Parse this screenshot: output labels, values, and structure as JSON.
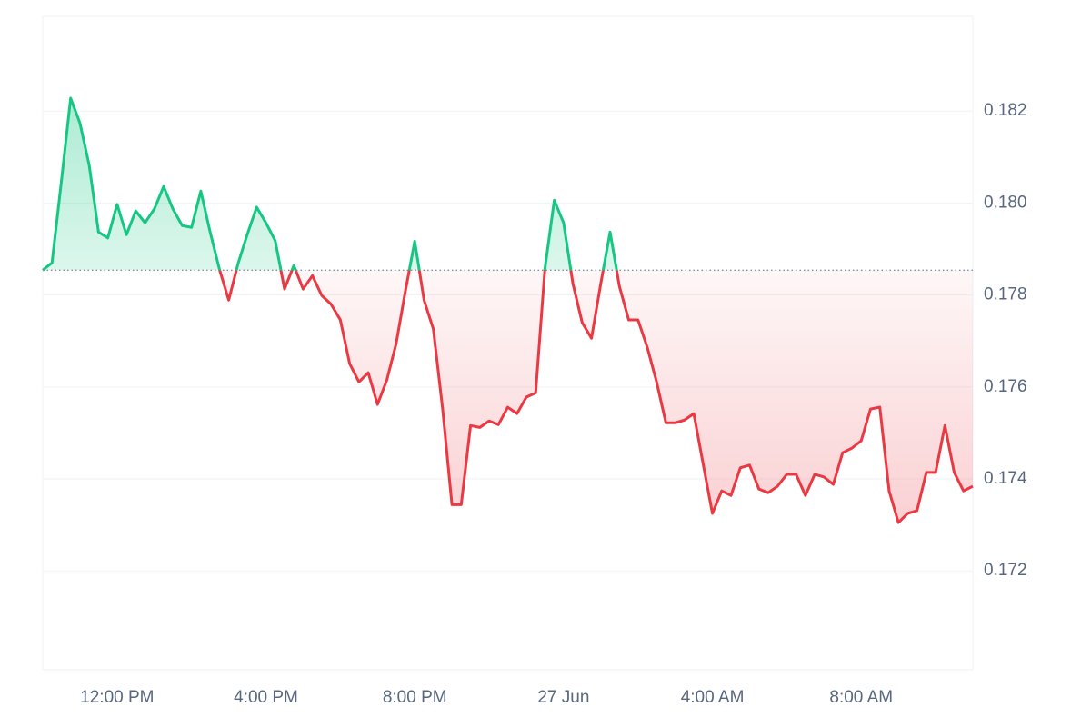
{
  "chart_data": {
    "type": "line",
    "x": [
      "26 Jun 10:00",
      "26 Jun 10:15",
      "26 Jun 10:30",
      "26 Jun 10:45",
      "26 Jun 11:00",
      "26 Jun 11:15",
      "26 Jun 11:30",
      "26 Jun 11:45",
      "26 Jun 12:00",
      "26 Jun 12:15",
      "26 Jun 12:30",
      "26 Jun 12:45",
      "26 Jun 13:00",
      "26 Jun 13:15",
      "26 Jun 13:30",
      "26 Jun 13:45",
      "26 Jun 14:00",
      "26 Jun 14:15",
      "26 Jun 14:30",
      "26 Jun 14:45",
      "26 Jun 15:00",
      "26 Jun 15:15",
      "26 Jun 15:30",
      "26 Jun 15:45",
      "26 Jun 16:00",
      "26 Jun 16:15",
      "26 Jun 16:30",
      "26 Jun 16:45",
      "26 Jun 17:00",
      "26 Jun 17:15",
      "26 Jun 17:30",
      "26 Jun 17:45",
      "26 Jun 18:00",
      "26 Jun 18:15",
      "26 Jun 18:30",
      "26 Jun 18:45",
      "26 Jun 19:00",
      "26 Jun 19:15",
      "26 Jun 19:30",
      "26 Jun 19:45",
      "26 Jun 20:00",
      "26 Jun 20:15",
      "26 Jun 20:30",
      "26 Jun 20:45",
      "26 Jun 21:00",
      "26 Jun 21:15",
      "26 Jun 21:30",
      "26 Jun 21:45",
      "26 Jun 22:00",
      "26 Jun 22:15",
      "26 Jun 22:30",
      "26 Jun 22:45",
      "26 Jun 23:00",
      "26 Jun 23:15",
      "26 Jun 23:30",
      "26 Jun 23:45",
      "27 Jun 00:00",
      "27 Jun 00:15",
      "27 Jun 00:30",
      "27 Jun 00:45",
      "27 Jun 01:00",
      "27 Jun 01:15",
      "27 Jun 01:30",
      "27 Jun 01:45",
      "27 Jun 02:00",
      "27 Jun 02:15",
      "27 Jun 02:30",
      "27 Jun 02:45",
      "27 Jun 03:00",
      "27 Jun 03:15",
      "27 Jun 03:30",
      "27 Jun 03:45",
      "27 Jun 04:00",
      "27 Jun 04:15",
      "27 Jun 04:30",
      "27 Jun 04:45",
      "27 Jun 05:00",
      "27 Jun 05:15",
      "27 Jun 05:30",
      "27 Jun 05:45",
      "27 Jun 06:00",
      "27 Jun 06:15",
      "27 Jun 06:30",
      "27 Jun 06:45",
      "27 Jun 07:00",
      "27 Jun 07:15",
      "27 Jun 07:30",
      "27 Jun 07:45",
      "27 Jun 08:00",
      "27 Jun 08:15",
      "27 Jun 08:30",
      "27 Jun 08:45",
      "27 Jun 09:00",
      "27 Jun 09:15",
      "27 Jun 09:30",
      "27 Jun 09:45",
      "27 Jun 10:00",
      "27 Jun 10:15",
      "27 Jun 10:30",
      "27 Jun 10:45",
      "27 Jun 11:00"
    ],
    "values": [
      0.17854,
      0.1787,
      0.18046,
      0.18228,
      0.18174,
      0.18082,
      0.17937,
      0.17924,
      0.17997,
      0.17931,
      0.17983,
      0.17957,
      0.17987,
      0.18036,
      0.17987,
      0.17951,
      0.17947,
      0.18026,
      0.17937,
      0.17856,
      0.17789,
      0.17868,
      0.17932,
      0.17991,
      0.17957,
      0.17918,
      0.17813,
      0.17864,
      0.17813,
      0.17842,
      0.17799,
      0.1778,
      0.17746,
      0.17651,
      0.17611,
      0.17631,
      0.17562,
      0.17615,
      0.17694,
      0.17809,
      0.17917,
      0.17789,
      0.17726,
      0.17552,
      0.17344,
      0.17344,
      0.17516,
      0.17512,
      0.17526,
      0.17518,
      0.17556,
      0.17542,
      0.17578,
      0.17587,
      0.17858,
      0.18006,
      0.17957,
      0.17825,
      0.1774,
      0.17706,
      0.17825,
      0.17937,
      0.17819,
      0.17746,
      0.17746,
      0.17686,
      0.17611,
      0.17522,
      0.17522,
      0.17528,
      0.17542,
      0.17433,
      0.17325,
      0.17374,
      0.17364,
      0.17424,
      0.1743,
      0.17378,
      0.1737,
      0.17384,
      0.1741,
      0.1741,
      0.17364,
      0.1741,
      0.17404,
      0.17388,
      0.17457,
      0.17467,
      0.17483,
      0.17552,
      0.17556,
      0.17374,
      0.17305,
      0.17325,
      0.17331,
      0.17414,
      0.17414,
      0.17516,
      0.17414,
      0.17374,
      0.17384
    ],
    "up_color": "#16c784",
    "down_color": "#ea3943",
    "xlim": [
      "26 Jun 10:00",
      "27 Jun 11:00"
    ],
    "xticks": [
      {
        "value": "26 Jun 12:00",
        "label": "12:00 PM"
      },
      {
        "value": "26 Jun 16:00",
        "label": "4:00 PM"
      },
      {
        "value": "26 Jun 20:00",
        "label": "8:00 PM"
      },
      {
        "value": "27 Jun 00:00",
        "label": "27 Jun"
      },
      {
        "value": "27 Jun 04:00",
        "label": "4:00 AM"
      },
      {
        "value": "27 Jun 08:00",
        "label": "8:00 AM"
      }
    ],
    "ylim": [
      0.16985,
      0.18406
    ],
    "yticks": [
      0.172,
      0.174,
      0.176,
      0.178,
      {
        "value": 0.18,
        "label": "0.180"
      },
      0.182
    ],
    "grid": true
  }
}
